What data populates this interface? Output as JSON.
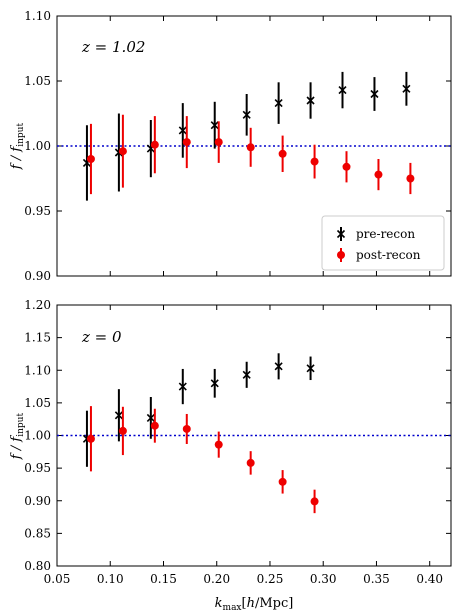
{
  "chart_data": [
    {
      "type": "scatter",
      "panel": "top",
      "annotation": "z = 1.02",
      "ylabel": "f / f_input",
      "ylim": [
        0.9,
        1.1
      ],
      "yticks": [
        "0.90",
        "0.95",
        "1.00",
        "1.05",
        "1.10"
      ],
      "xlim": [
        0.05,
        0.42
      ],
      "reference_line": 1.0,
      "legend_position": "bottom-right",
      "series": [
        {
          "name": "pre-recon",
          "marker": "x",
          "color": "#000000",
          "x": [
            0.08,
            0.11,
            0.14,
            0.17,
            0.2,
            0.23,
            0.26,
            0.29,
            0.32,
            0.35,
            0.38
          ],
          "y": [
            0.987,
            0.995,
            0.998,
            1.012,
            1.016,
            1.024,
            1.033,
            1.035,
            1.043,
            1.04,
            1.044
          ],
          "err": [
            0.029,
            0.03,
            0.022,
            0.021,
            0.018,
            0.016,
            0.016,
            0.014,
            0.014,
            0.013,
            0.013
          ]
        },
        {
          "name": "post-recon",
          "marker": "o",
          "color": "#ee0000",
          "x": [
            0.08,
            0.11,
            0.14,
            0.17,
            0.2,
            0.23,
            0.26,
            0.29,
            0.32,
            0.35,
            0.38
          ],
          "y": [
            0.99,
            0.996,
            1.001,
            1.003,
            1.003,
            0.999,
            0.994,
            0.988,
            0.984,
            0.978,
            0.975
          ],
          "err": [
            0.027,
            0.028,
            0.022,
            0.02,
            0.016,
            0.015,
            0.014,
            0.013,
            0.012,
            0.012,
            0.012
          ]
        }
      ]
    },
    {
      "type": "scatter",
      "panel": "bottom",
      "annotation": "z = 0",
      "ylabel": "f / f_input",
      "xlabel": "k_max[h/Mpc]",
      "ylim": [
        0.8,
        1.2
      ],
      "yticks": [
        "0.80",
        "0.85",
        "0.90",
        "0.95",
        "1.00",
        "1.05",
        "1.10",
        "1.15",
        "1.20"
      ],
      "xlim": [
        0.05,
        0.42
      ],
      "xticks": [
        "0.05",
        "0.10",
        "0.15",
        "0.20",
        "0.25",
        "0.30",
        "0.35",
        "0.40"
      ],
      "reference_line": 1.0,
      "series": [
        {
          "name": "pre-recon",
          "marker": "x",
          "color": "#000000",
          "x": [
            0.08,
            0.11,
            0.14,
            0.17,
            0.2,
            0.23,
            0.26,
            0.29
          ],
          "y": [
            0.995,
            1.031,
            1.027,
            1.075,
            1.08,
            1.093,
            1.106,
            1.103
          ],
          "err": [
            0.043,
            0.04,
            0.032,
            0.027,
            0.022,
            0.02,
            0.02,
            0.018
          ]
        },
        {
          "name": "post-recon",
          "marker": "o",
          "color": "#ee0000",
          "x": [
            0.08,
            0.11,
            0.14,
            0.17,
            0.2,
            0.23,
            0.26,
            0.29
          ],
          "y": [
            0.995,
            1.007,
            1.015,
            1.01,
            0.986,
            0.958,
            0.929,
            0.899
          ],
          "err": [
            0.05,
            0.037,
            0.026,
            0.023,
            0.02,
            0.018,
            0.018,
            0.018
          ]
        }
      ]
    }
  ]
}
